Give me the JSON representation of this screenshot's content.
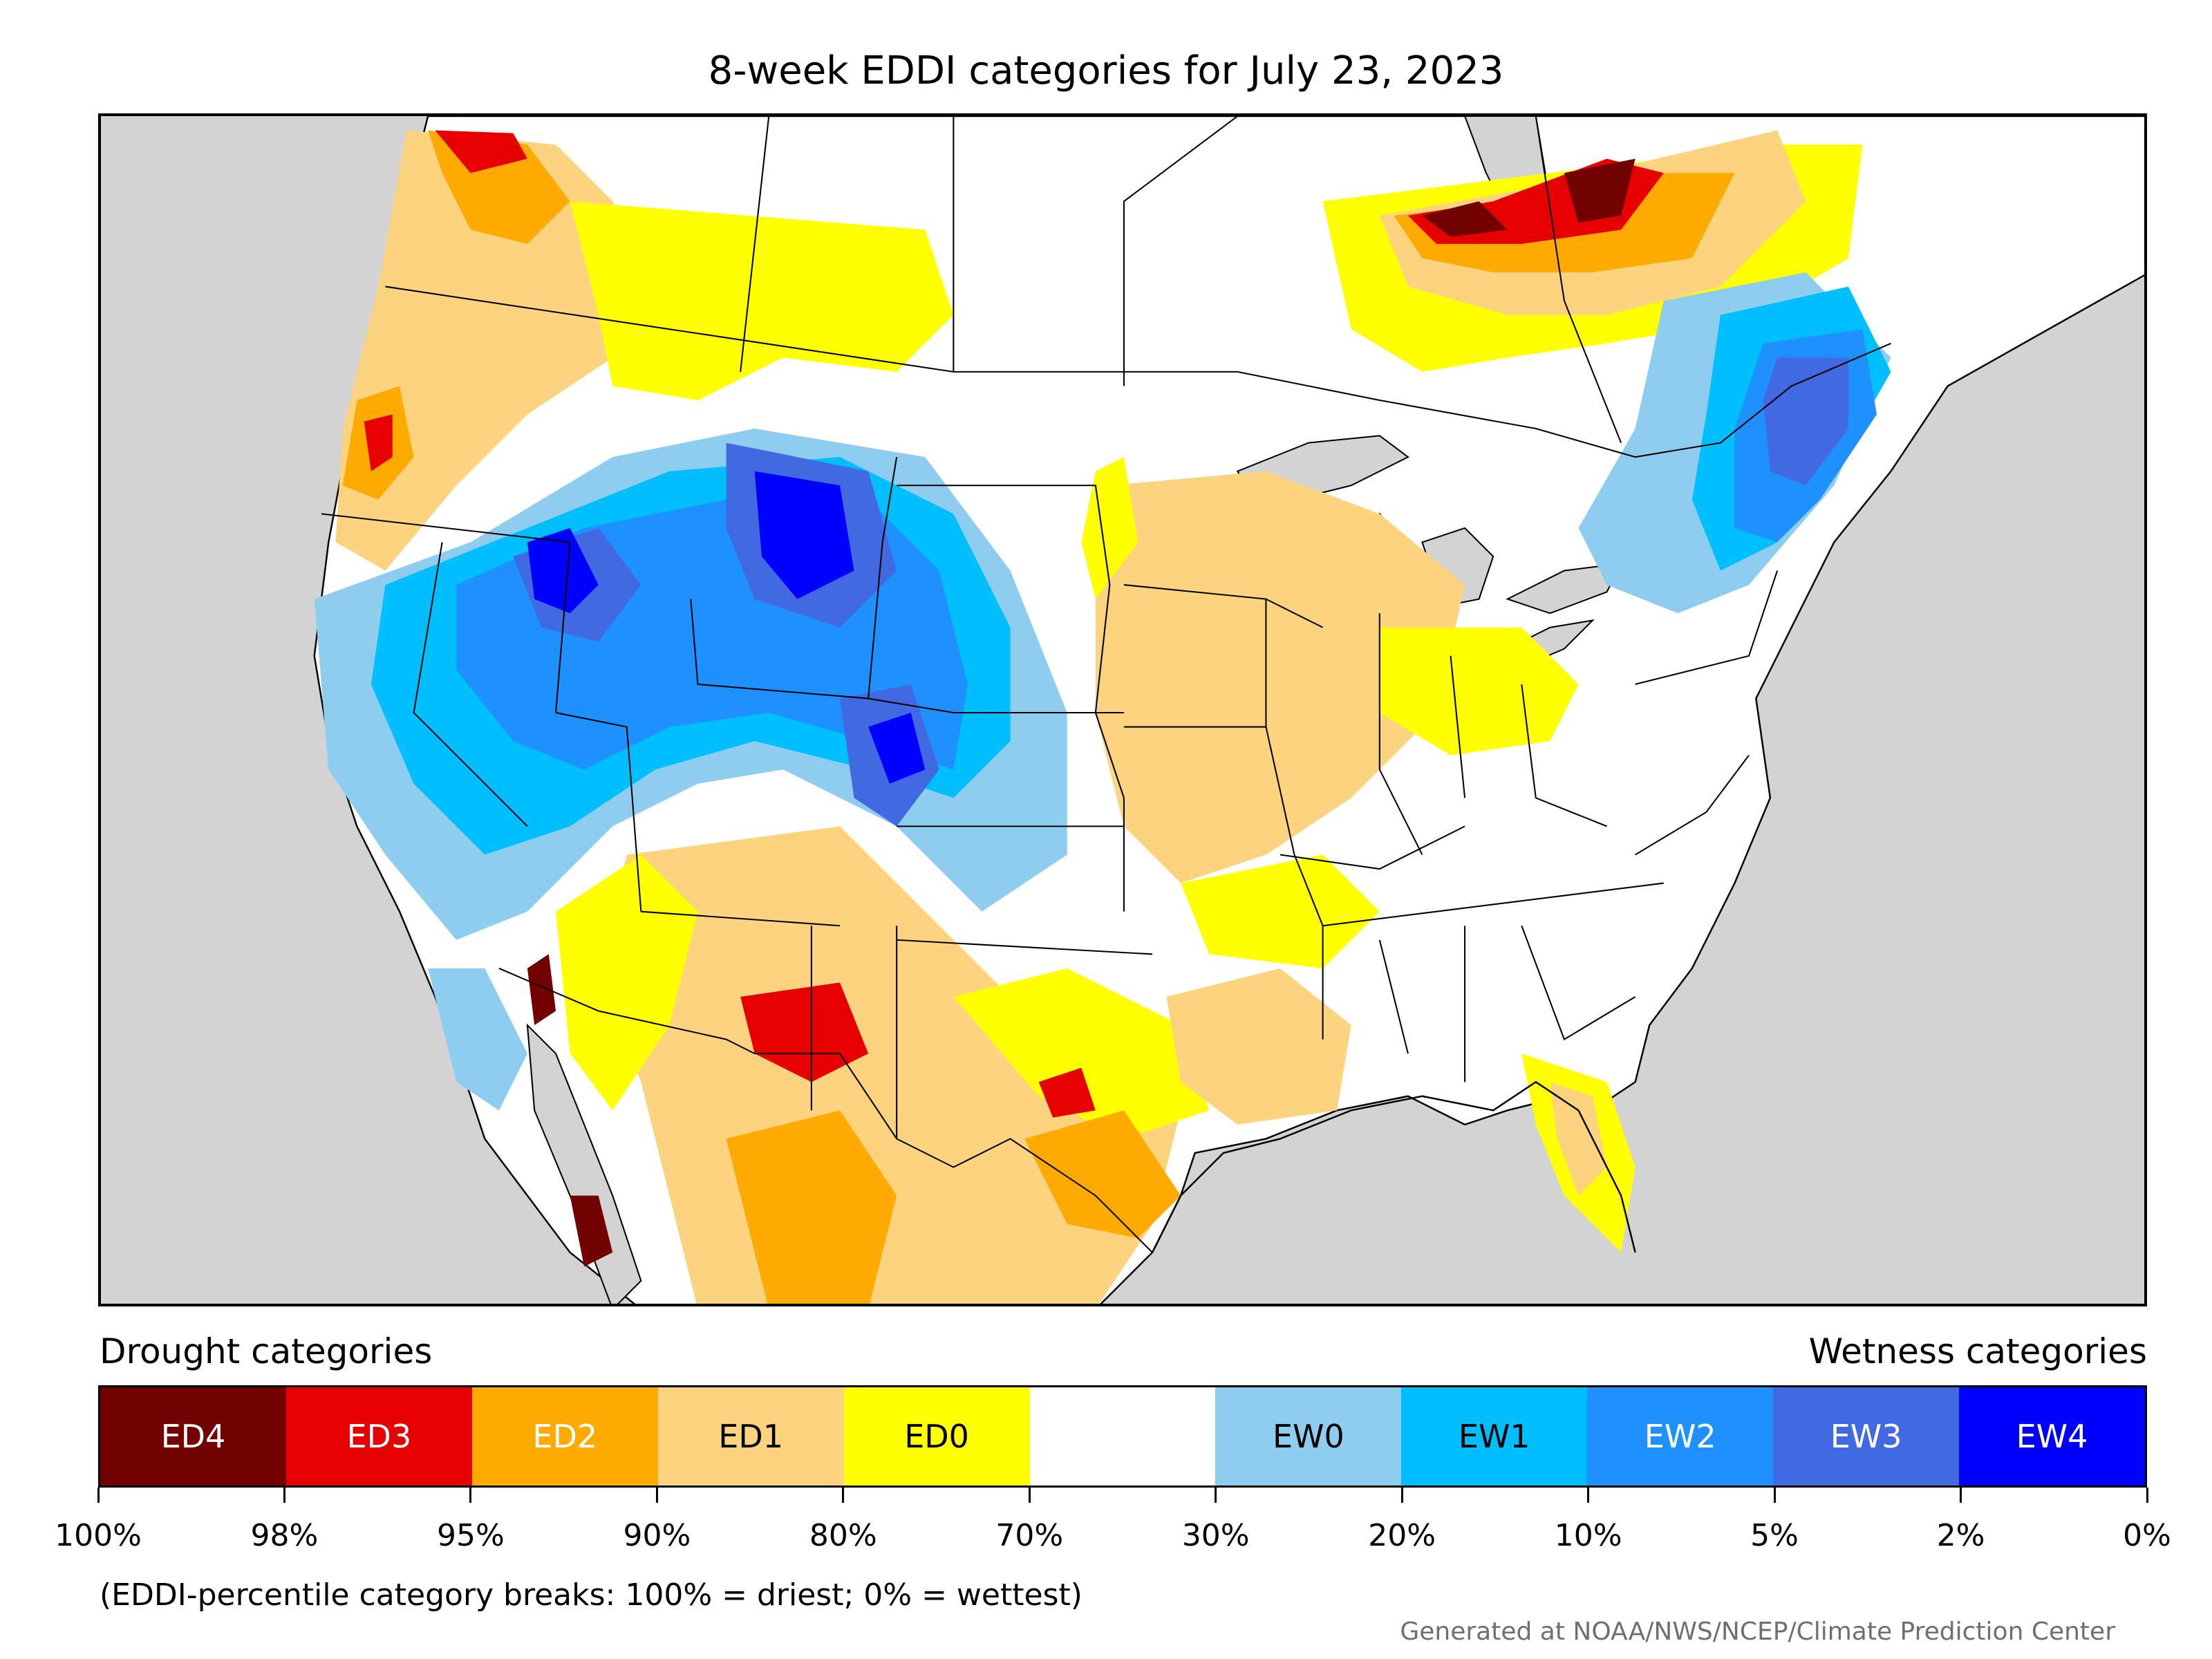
{
  "title": "8-week EDDI categories for July 23, 2023",
  "legend": {
    "drought_title": "Drought categories",
    "wetness_title": "Wetness categories",
    "categories": [
      {
        "label": "ED4",
        "color": "#730000",
        "text_color": "#ffffff"
      },
      {
        "label": "ED3",
        "color": "#e60000",
        "text_color": "#ffffff"
      },
      {
        "label": "ED2",
        "color": "#ffaa00",
        "text_color": "#ffffff"
      },
      {
        "label": "ED1",
        "color": "#fcd37f",
        "text_color": "#000000"
      },
      {
        "label": "ED0",
        "color": "#ffff00",
        "text_color": "#000000"
      },
      {
        "label": "",
        "color": "#ffffff",
        "text_color": "#000000"
      },
      {
        "label": "EW0",
        "color": "#8ecdf0",
        "text_color": "#000000"
      },
      {
        "label": "EW1",
        "color": "#00bfff",
        "text_color": "#000000"
      },
      {
        "label": "EW2",
        "color": "#1e90ff",
        "text_color": "#ffffff"
      },
      {
        "label": "EW3",
        "color": "#4169e1",
        "text_color": "#ffffff"
      },
      {
        "label": "EW4",
        "color": "#0000ff",
        "text_color": "#ffffff"
      }
    ],
    "ticks": [
      "100%",
      "98%",
      "95%",
      "90%",
      "80%",
      "70%",
      "30%",
      "20%",
      "10%",
      "5%",
      "2%",
      "0%"
    ]
  },
  "footnote": "(EDDI-percentile category breaks: 100% = driest; 0% = wettest)",
  "credit": "Generated at NOAA/NWS/NCEP/Climate Prediction Center"
}
